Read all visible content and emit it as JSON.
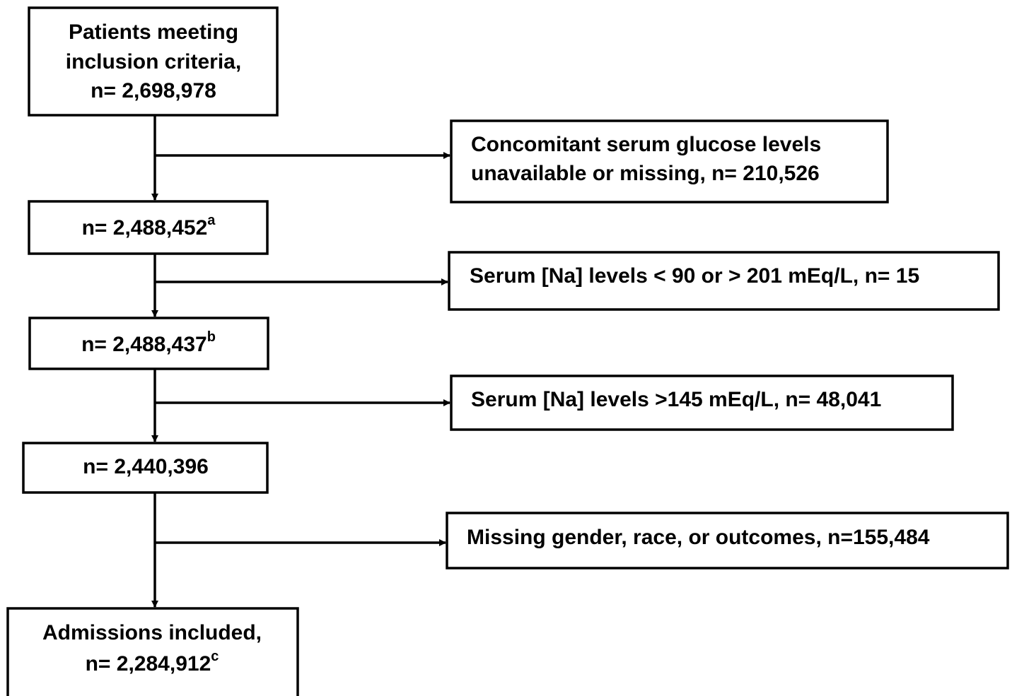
{
  "nodes": [
    {
      "lines": [
        "Patients meeting",
        "inclusion criteria,",
        "n= 2,698,978"
      ]
    },
    {
      "lines": [
        "n= 2,488,452"
      ],
      "sup": "a"
    },
    {
      "lines": [
        "n= 2,488,437"
      ],
      "sup": "b"
    },
    {
      "lines": [
        "n= 2,440,396"
      ]
    },
    {
      "lines": [
        "Admissions included,",
        "n= 2,284,912"
      ],
      "sup": "c"
    }
  ],
  "exclusions": [
    {
      "lines": [
        "Concomitant serum glucose levels",
        "unavailable or missing, n= 210,526"
      ]
    },
    {
      "lines": [
        "Serum [Na] levels < 90 or > 201 mEq/L, n= 15"
      ]
    },
    {
      "lines": [
        "Serum [Na] levels >145 mEq/L, n= 48,041"
      ]
    },
    {
      "lines": [
        "Missing gender, race, or outcomes, n=155,484"
      ]
    }
  ]
}
